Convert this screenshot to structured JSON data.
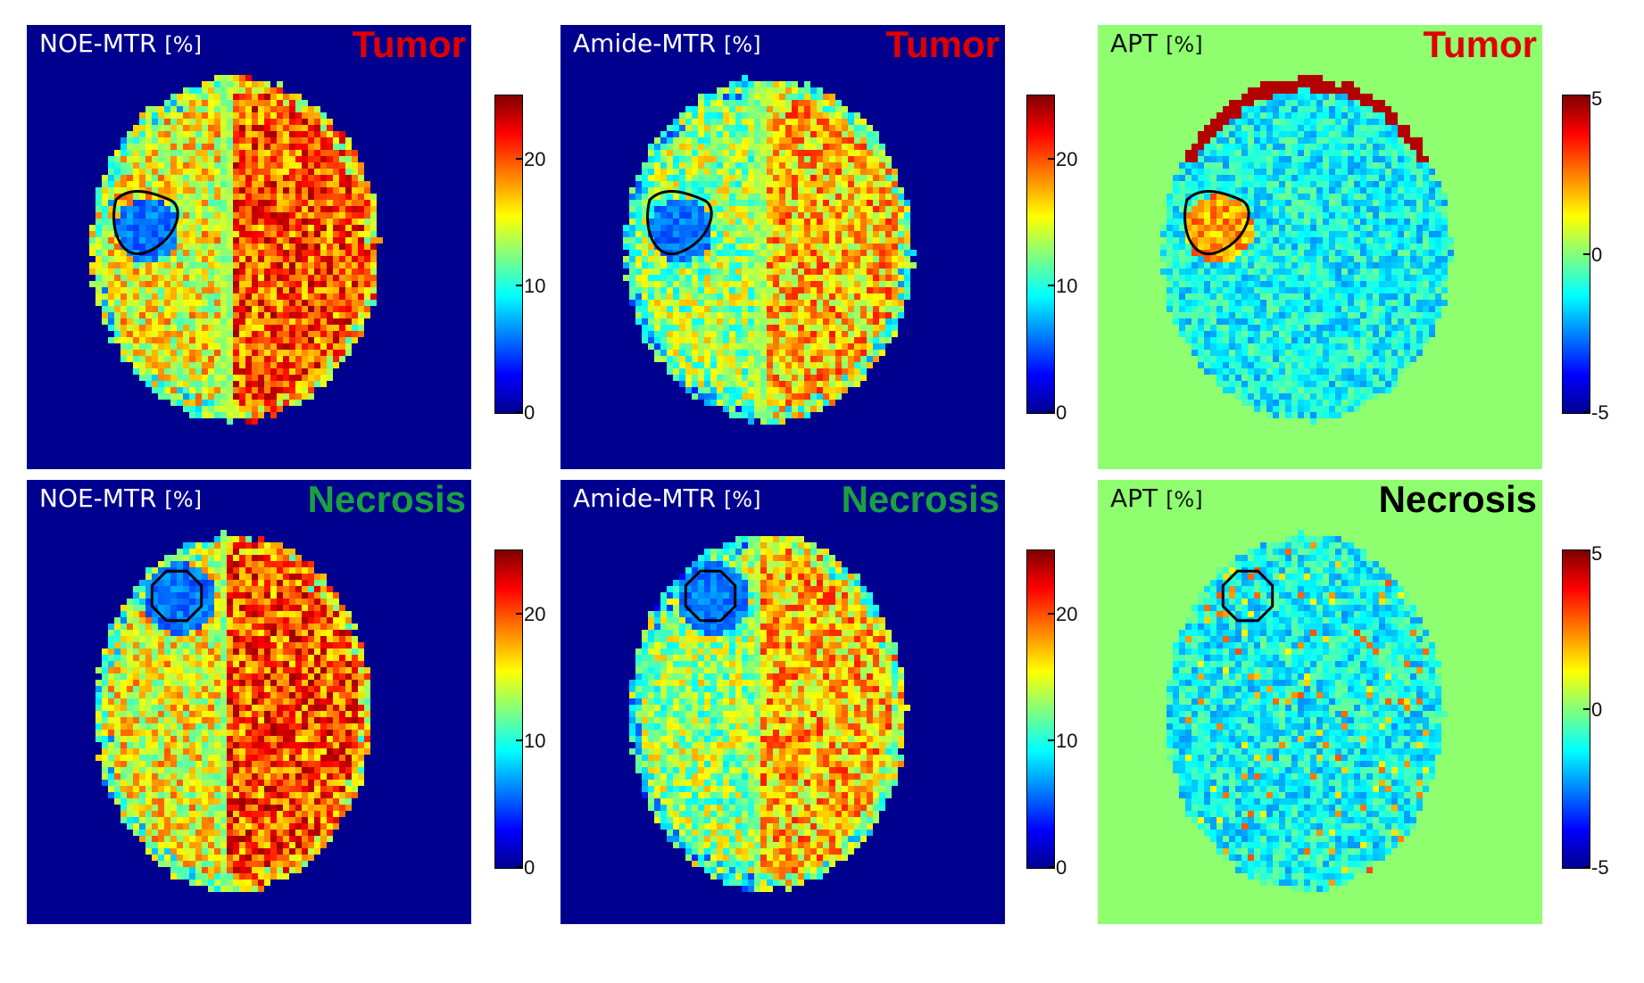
{
  "colors": {
    "mtr_background": "#00008f",
    "apt_background": "#8fff70",
    "tumor_label": "#e00000",
    "necrosis_label_mtr": "#1aa040",
    "necrosis_label_apt": "#000000"
  },
  "panels": [
    {
      "title": "NOE-MTR",
      "unit": "[%]",
      "tag": "Tumor"
    },
    {
      "title": "Amide-MTR",
      "unit": "[%]",
      "tag": "Tumor"
    },
    {
      "title": "APT",
      "unit": "[%]",
      "tag": "Tumor"
    },
    {
      "title": "NOE-MTR",
      "unit": "[%]",
      "tag": "Necrosis"
    },
    {
      "title": "Amide-MTR",
      "unit": "[%]",
      "tag": "Necrosis"
    },
    {
      "title": "APT",
      "unit": "[%]",
      "tag": "Necrosis"
    }
  ],
  "colorbars": {
    "mtr": {
      "min": 0,
      "max": 25,
      "ticks": [
        "0",
        "10",
        "20"
      ]
    },
    "apt": {
      "min": -5,
      "max": 5,
      "ticks": [
        "-5",
        "0",
        "5"
      ]
    }
  }
}
